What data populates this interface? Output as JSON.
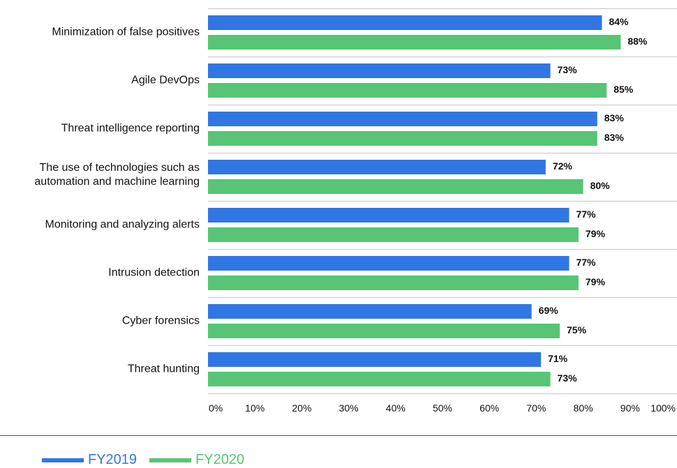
{
  "chart_data": {
    "type": "bar",
    "orientation": "horizontal",
    "categories": [
      "Minimization of false positives",
      "Agile DevOps",
      "Threat intelligence reporting",
      "The use of technologies such as automation and machine learning",
      "Monitoring and analyzing alerts",
      "Intrusion detection",
      "Cyber forensics",
      "Threat hunting"
    ],
    "series": [
      {
        "name": "FY2019",
        "color": "#3077e3",
        "values": [
          84,
          73,
          83,
          72,
          77,
          77,
          69,
          71
        ]
      },
      {
        "name": "FY2020",
        "color": "#57c575",
        "values": [
          88,
          85,
          83,
          80,
          79,
          79,
          75,
          73
        ]
      }
    ],
    "xlim": [
      0,
      100
    ],
    "x_ticks": [
      "0%",
      "10%",
      "20%",
      "30%",
      "40%",
      "50%",
      "60%",
      "70%",
      "80%",
      "90%",
      "100%"
    ],
    "value_suffix": "%",
    "grid": "horizontal separators between categories",
    "legend_position": "bottom-left",
    "title": "",
    "xlabel": "",
    "ylabel": ""
  }
}
